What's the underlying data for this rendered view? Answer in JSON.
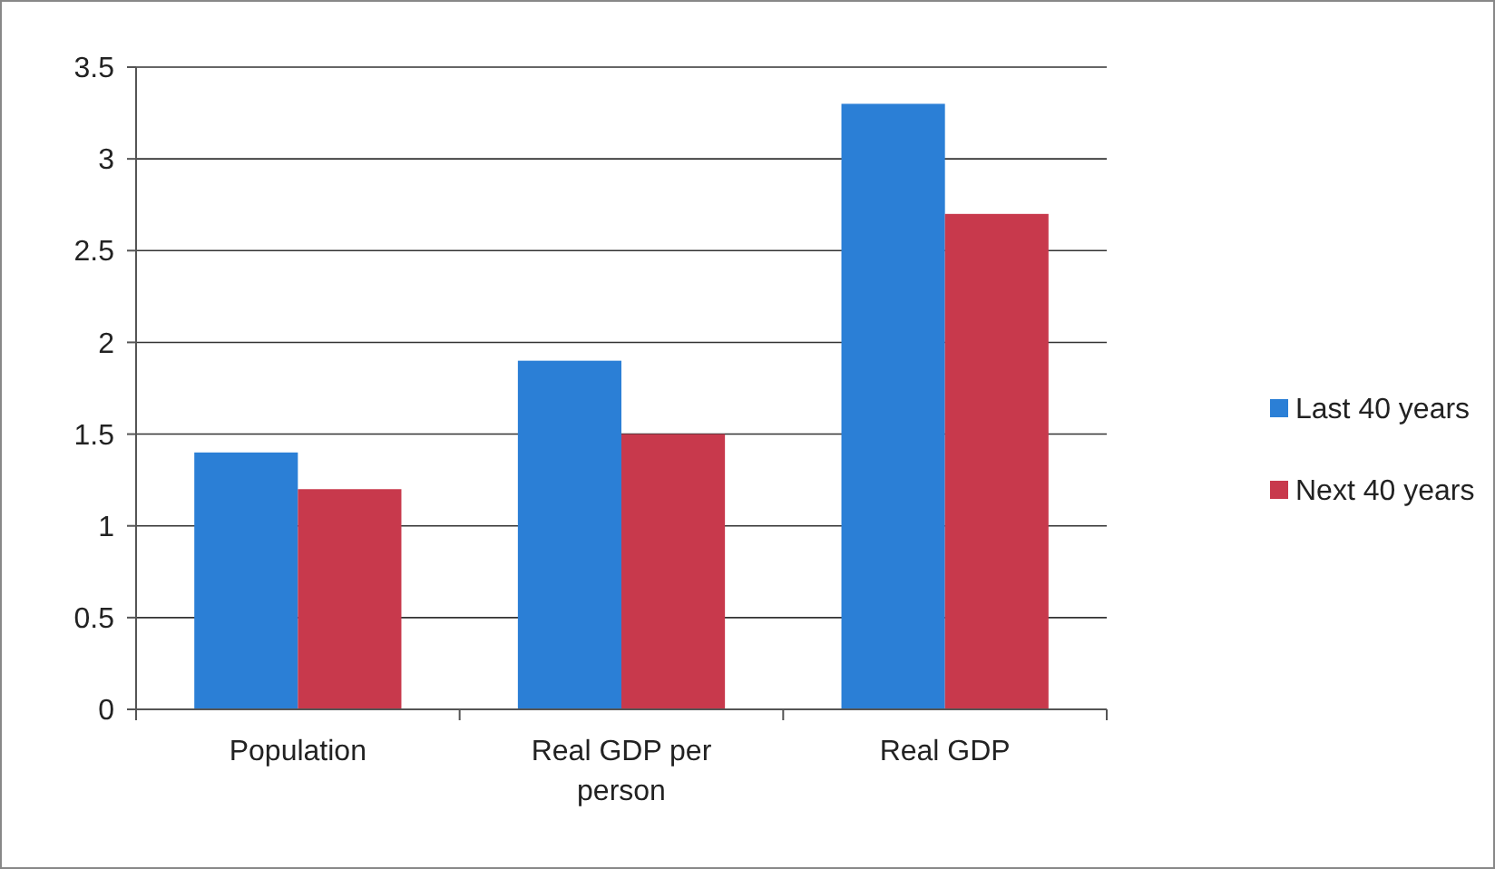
{
  "chart_data": {
    "type": "bar",
    "categories": [
      "Population",
      "Real GDP per person",
      "Real GDP"
    ],
    "series": [
      {
        "name": "Last 40 years",
        "color": "#2b7fd6",
        "values": [
          1.4,
          1.9,
          3.3
        ]
      },
      {
        "name": "Next 40 years",
        "color": "#c8394c",
        "values": [
          1.2,
          1.5,
          2.7
        ]
      }
    ],
    "ylim": [
      0,
      3.5
    ],
    "yticks": [
      0,
      0.5,
      1,
      1.5,
      2,
      2.5,
      3,
      3.5
    ],
    "grid": "y",
    "legend": "right"
  }
}
